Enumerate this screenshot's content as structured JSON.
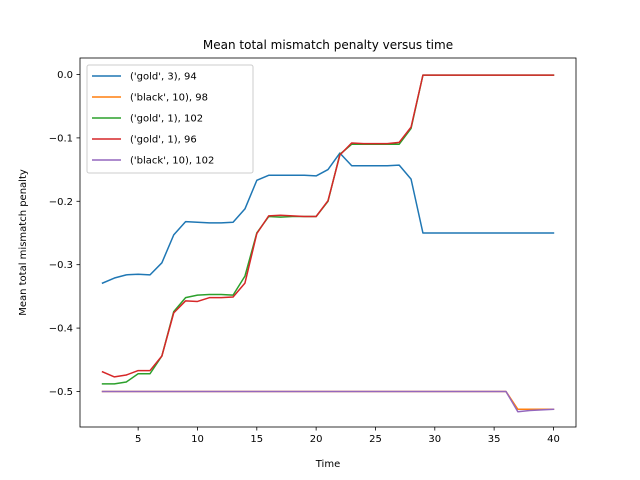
{
  "chart_data": {
    "type": "line",
    "title": "Mean total mismatch penalty versus time",
    "xlabel": "Time",
    "ylabel": "Mean total mismatch penalty",
    "xlim": [
      0.1,
      41.9
    ],
    "ylim": [
      -0.556,
      0.026
    ],
    "xticks": [
      5,
      10,
      15,
      20,
      25,
      30,
      35,
      40
    ],
    "yticks": [
      -0.5,
      -0.4,
      -0.3,
      -0.2,
      -0.1,
      0.0
    ],
    "ytick_labels": [
      "−0.5",
      "−0.4",
      "−0.3",
      "−0.2",
      "−0.1",
      "0.0"
    ],
    "grid": false,
    "legend_position": "upper-left",
    "x": [
      2,
      3,
      4,
      5,
      6,
      7,
      8,
      9,
      10,
      11,
      12,
      13,
      14,
      15,
      16,
      17,
      18,
      19,
      20,
      21,
      22,
      23,
      24,
      25,
      26,
      27,
      28,
      29,
      30,
      31,
      32,
      33,
      34,
      35,
      36,
      37,
      38,
      39,
      40
    ],
    "series": [
      {
        "name": "('gold', 3), 94",
        "color": "#1f77b4",
        "values": [
          -0.329,
          -0.321,
          -0.316,
          -0.315,
          -0.316,
          -0.297,
          -0.253,
          -0.232,
          -0.233,
          -0.234,
          -0.234,
          -0.233,
          -0.212,
          -0.167,
          -0.159,
          -0.159,
          -0.159,
          -0.159,
          -0.16,
          -0.15,
          -0.124,
          -0.144,
          -0.144,
          -0.144,
          -0.144,
          -0.143,
          -0.165,
          -0.25,
          -0.25,
          -0.25,
          -0.25,
          -0.25,
          -0.25,
          -0.25,
          -0.25,
          -0.25,
          -0.25,
          -0.25,
          -0.25
        ]
      },
      {
        "name": "('black', 10), 98",
        "color": "#ff7f0e",
        "values": [
          -0.5,
          -0.5,
          -0.5,
          -0.5,
          -0.5,
          -0.5,
          -0.5,
          -0.5,
          -0.5,
          -0.5,
          -0.5,
          -0.5,
          -0.5,
          -0.5,
          -0.5,
          -0.5,
          -0.5,
          -0.5,
          -0.5,
          -0.5,
          -0.5,
          -0.5,
          -0.5,
          -0.5,
          -0.5,
          -0.5,
          -0.5,
          -0.5,
          -0.5,
          -0.5,
          -0.5,
          -0.5,
          -0.5,
          -0.5,
          -0.5,
          -0.528,
          -0.528,
          -0.528,
          -0.528
        ]
      },
      {
        "name": "('gold', 1), 102",
        "color": "#2ca02c",
        "values": [
          -0.488,
          -0.488,
          -0.485,
          -0.472,
          -0.472,
          -0.444,
          -0.374,
          -0.352,
          -0.348,
          -0.347,
          -0.347,
          -0.348,
          -0.318,
          -0.25,
          -0.224,
          -0.225,
          -0.224,
          -0.224,
          -0.224,
          -0.2,
          -0.126,
          -0.11,
          -0.11,
          -0.11,
          -0.11,
          -0.11,
          -0.085,
          -0.001,
          -0.001,
          -0.001,
          -0.001,
          -0.001,
          -0.001,
          -0.001,
          -0.001,
          -0.001,
          -0.001,
          -0.001,
          -0.001
        ]
      },
      {
        "name": "('gold', 1), 96",
        "color": "#d62728",
        "values": [
          -0.469,
          -0.477,
          -0.474,
          -0.467,
          -0.467,
          -0.444,
          -0.376,
          -0.357,
          -0.358,
          -0.352,
          -0.352,
          -0.351,
          -0.329,
          -0.251,
          -0.223,
          -0.222,
          -0.223,
          -0.224,
          -0.224,
          -0.199,
          -0.127,
          -0.108,
          -0.109,
          -0.109,
          -0.109,
          -0.107,
          -0.083,
          -0.001,
          -0.001,
          -0.001,
          -0.001,
          -0.001,
          -0.001,
          -0.001,
          -0.001,
          -0.001,
          -0.001,
          -0.001,
          -0.001
        ]
      },
      {
        "name": "('black', 10), 102",
        "color": "#9467bd",
        "values": [
          -0.5,
          -0.5,
          -0.5,
          -0.5,
          -0.5,
          -0.5,
          -0.5,
          -0.5,
          -0.5,
          -0.5,
          -0.5,
          -0.5,
          -0.5,
          -0.5,
          -0.5,
          -0.5,
          -0.5,
          -0.5,
          -0.5,
          -0.5,
          -0.5,
          -0.5,
          -0.5,
          -0.5,
          -0.5,
          -0.5,
          -0.5,
          -0.5,
          -0.5,
          -0.5,
          -0.5,
          -0.5,
          -0.5,
          -0.5,
          -0.5,
          -0.532,
          -0.53,
          -0.529,
          -0.528
        ]
      }
    ]
  }
}
